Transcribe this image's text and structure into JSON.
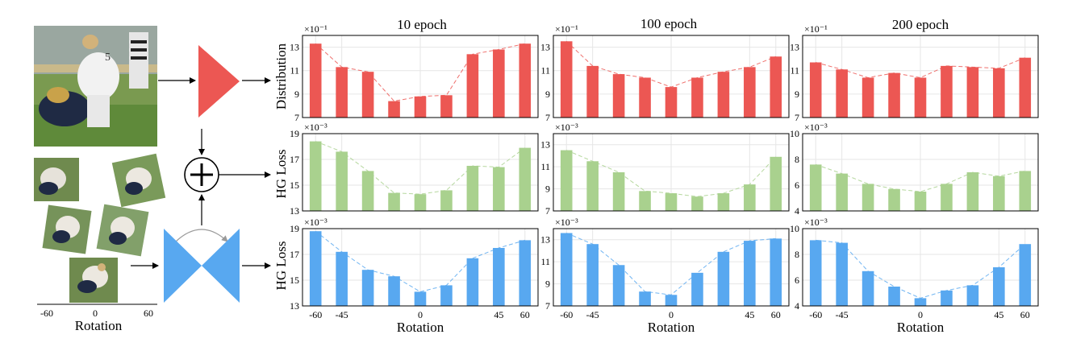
{
  "figure": {
    "column_titles": [
      "10 epoch",
      "100 epoch",
      "200 epoch"
    ],
    "row_ylabels": [
      "Distribution",
      "HG Loss",
      "HG Loss"
    ],
    "xlabel": "Rotation",
    "pipeline": {
      "rotation_axis_label": "Rotation",
      "rotation_ticks": [
        "-60",
        "0",
        "60"
      ],
      "combine_symbol": "+"
    },
    "colors": {
      "distribution": "#ec5753",
      "hg_loss_green": "#a9d18e",
      "hg_loss_blue": "#58a8f0",
      "grid": "#e6e6e6",
      "arrow": "#000000"
    }
  },
  "chart_data": [
    {
      "type": "bar",
      "panel": "r1c1",
      "title": "10 epoch",
      "ylabel": "Distribution",
      "xlabel": "",
      "exponent": "×10⁻¹",
      "x": [
        -60,
        -45,
        -30,
        -15,
        0,
        15,
        30,
        45,
        60
      ],
      "xticks": [
        "-60",
        "-45",
        "0",
        "45",
        "60"
      ],
      "values": [
        13.3,
        11.3,
        10.9,
        8.4,
        8.8,
        8.9,
        12.4,
        12.8,
        13.3
      ],
      "ylim": [
        7,
        14
      ],
      "yticks": [
        "7",
        "9",
        "11",
        "13"
      ],
      "grid": true,
      "color": "#ec5753"
    },
    {
      "type": "bar",
      "panel": "r1c2",
      "title": "100 epoch",
      "ylabel": "",
      "xlabel": "",
      "exponent": "×10⁻¹",
      "x": [
        -60,
        -45,
        -30,
        -15,
        0,
        15,
        30,
        45,
        60
      ],
      "xticks": [
        "-60",
        "-45",
        "0",
        "45",
        "60"
      ],
      "values": [
        13.5,
        11.4,
        10.7,
        10.4,
        9.6,
        10.4,
        10.9,
        11.3,
        12.2
      ],
      "ylim": [
        7,
        14
      ],
      "yticks": [
        "7",
        "9",
        "11",
        "13"
      ],
      "grid": true,
      "color": "#ec5753"
    },
    {
      "type": "bar",
      "panel": "r1c3",
      "title": "200 epoch",
      "ylabel": "",
      "xlabel": "",
      "exponent": "×10⁻¹",
      "x": [
        -60,
        -45,
        -30,
        -15,
        0,
        15,
        30,
        45,
        60
      ],
      "xticks": [
        "-60",
        "-45",
        "0",
        "45",
        "60"
      ],
      "values": [
        11.7,
        11.1,
        10.4,
        10.8,
        10.4,
        11.4,
        11.3,
        11.2,
        12.1
      ],
      "ylim": [
        7,
        14
      ],
      "yticks": [
        "7",
        "9",
        "11",
        "13"
      ],
      "grid": true,
      "color": "#ec5753"
    },
    {
      "type": "bar",
      "panel": "r2c1",
      "title": "",
      "ylabel": "HG Loss",
      "xlabel": "",
      "exponent": "×10⁻³",
      "x": [
        -60,
        -45,
        -30,
        -15,
        0,
        15,
        30,
        45,
        60
      ],
      "xticks": [
        "-60",
        "-45",
        "0",
        "45",
        "60"
      ],
      "values": [
        18.4,
        17.6,
        16.1,
        14.4,
        14.3,
        14.6,
        16.5,
        16.4,
        17.9
      ],
      "ylim": [
        13,
        19
      ],
      "yticks": [
        "13",
        "15",
        "17",
        "19"
      ],
      "grid": true,
      "color": "#a9d18e"
    },
    {
      "type": "bar",
      "panel": "r2c2",
      "title": "",
      "ylabel": "",
      "xlabel": "",
      "exponent": "×10⁻³",
      "x": [
        -60,
        -45,
        -30,
        -15,
        0,
        15,
        30,
        45,
        60
      ],
      "xticks": [
        "-60",
        "-45",
        "0",
        "45",
        "60"
      ],
      "values": [
        12.5,
        11.5,
        10.5,
        8.8,
        8.6,
        8.3,
        8.6,
        9.4,
        11.9
      ],
      "ylim": [
        7,
        14
      ],
      "yticks": [
        "7",
        "9",
        "11",
        "13"
      ],
      "grid": true,
      "color": "#a9d18e"
    },
    {
      "type": "bar",
      "panel": "r2c3",
      "title": "",
      "ylabel": "",
      "xlabel": "",
      "exponent": "×10⁻³",
      "x": [
        -60,
        -45,
        -30,
        -15,
        0,
        15,
        30,
        45,
        60
      ],
      "xticks": [
        "-60",
        "-45",
        "0",
        "45",
        "60"
      ],
      "values": [
        7.6,
        6.9,
        6.1,
        5.7,
        5.5,
        6.1,
        7.0,
        6.7,
        7.1
      ],
      "ylim": [
        4,
        10
      ],
      "yticks": [
        "4",
        "6",
        "8",
        "10"
      ],
      "grid": true,
      "color": "#a9d18e"
    },
    {
      "type": "bar",
      "panel": "r3c1",
      "title": "",
      "ylabel": "HG Loss",
      "xlabel": "Rotation",
      "exponent": "×10⁻³",
      "x": [
        -60,
        -45,
        -30,
        -15,
        0,
        15,
        30,
        45,
        60
      ],
      "xticks": [
        "-60",
        "-45",
        "0",
        "45",
        "60"
      ],
      "values": [
        18.8,
        17.2,
        15.8,
        15.3,
        14.1,
        14.6,
        16.7,
        17.5,
        18.1
      ],
      "ylim": [
        13,
        19
      ],
      "yticks": [
        "13",
        "15",
        "17",
        "19"
      ],
      "grid": true,
      "color": "#58a8f0"
    },
    {
      "type": "bar",
      "panel": "r3c2",
      "title": "",
      "ylabel": "",
      "xlabel": "Rotation",
      "exponent": "×10⁻³",
      "x": [
        -60,
        -45,
        -30,
        -15,
        0,
        15,
        30,
        45,
        60
      ],
      "xticks": [
        "-60",
        "-45",
        "0",
        "45",
        "60"
      ],
      "values": [
        13.6,
        12.6,
        10.7,
        8.3,
        8.0,
        10.0,
        11.9,
        12.9,
        13.1
      ],
      "ylim": [
        7,
        14
      ],
      "yticks": [
        "7",
        "9",
        "11",
        "13"
      ],
      "grid": true,
      "color": "#58a8f0"
    },
    {
      "type": "bar",
      "panel": "r3c3",
      "title": "",
      "ylabel": "",
      "xlabel": "Rotation",
      "exponent": "×10⁻³",
      "x": [
        -60,
        -45,
        -30,
        -15,
        0,
        15,
        30,
        45,
        60
      ],
      "xticks": [
        "-60",
        "-45",
        "0",
        "45",
        "60"
      ],
      "values": [
        9.1,
        8.9,
        6.7,
        5.5,
        4.6,
        5.2,
        5.6,
        7.0,
        8.8
      ],
      "ylim": [
        4,
        10
      ],
      "yticks": [
        "4",
        "6",
        "8",
        "10"
      ],
      "grid": true,
      "color": "#58a8f0"
    }
  ]
}
